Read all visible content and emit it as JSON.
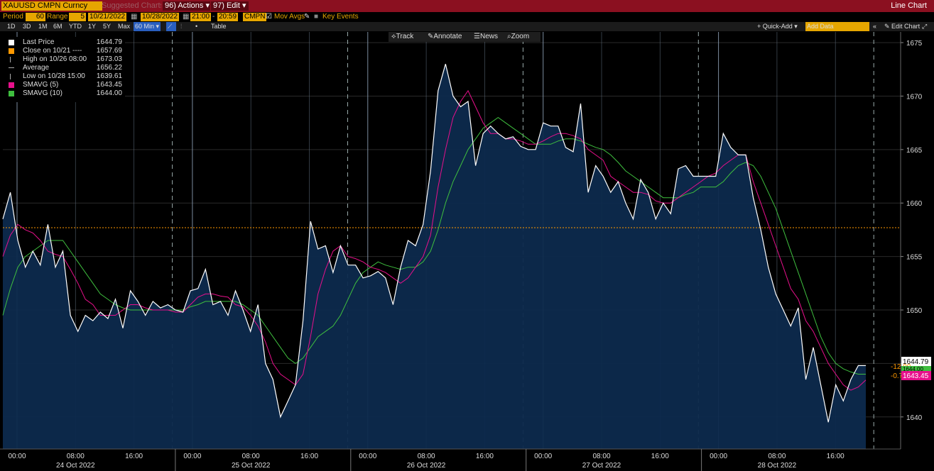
{
  "header": {
    "ticker": "XAUUSD CMPN Curncy",
    "suggested": "Suggested Charts",
    "actions": "96) Actions ▾",
    "edit": "97) Edit ▾",
    "title": "Line Chart"
  },
  "params": {
    "period_label": "Period",
    "period_value": "60",
    "range_label": "Range",
    "range_value": "5",
    "start_date": "10/21/2022",
    "end_date": "10/28/2022",
    "start_time": "21:00",
    "end_time": "20:59",
    "source": "CMPN",
    "mov_avgs": "Mov Avgs",
    "key_events": "Key Events"
  },
  "toolbar": {
    "ranges": [
      "1D",
      "3D",
      "1M",
      "6M",
      "YTD",
      "1Y",
      "5Y",
      "Max"
    ],
    "interval": "60 Min ▾",
    "table": "Table",
    "quick_add": "+ Quick-Add ▾",
    "add_data_placeholder": "Add Data",
    "edit_chart": "Edit Chart"
  },
  "tools": {
    "track": "Track",
    "annotate": "Annotate",
    "news": "News",
    "zoom": "Zoom"
  },
  "legend": [
    {
      "name": "Last Price",
      "value": "1644.79",
      "color": "#ffffff"
    },
    {
      "name": "Close on 10/21 ----",
      "value": "1657.69",
      "color": "#ff9900"
    },
    {
      "name": "High on 10/26 08:00",
      "value": "1673.03",
      "color": ""
    },
    {
      "name": "Average",
      "value": "1656.22",
      "color": ""
    },
    {
      "name": "Low on 10/28 15:00",
      "value": "1639.61",
      "color": ""
    },
    {
      "name": "SMAVG (5)",
      "value": "1643.45",
      "color": "#e8108c"
    },
    {
      "name": "SMAVG (10)",
      "value": "1644.00",
      "color": "#3fbf3f"
    }
  ],
  "right_tags": {
    "last": "1644.79",
    "change": "-12.90",
    "change_pct": "-0.78%",
    "smavg5": "1643.45",
    "smavg10": "1644.00"
  },
  "colors": {
    "price": "#ffffff",
    "fill": "#0d2a4d",
    "smavg5": "#e8108c",
    "smavg10": "#3fbf3f",
    "close_ref": "#ff9900",
    "accent": "#e6a600"
  },
  "chart_data": {
    "type": "area",
    "ylim": [
      1637,
      1676
    ],
    "yticks": [
      1640,
      1645,
      1650,
      1655,
      1660,
      1665,
      1670,
      1675
    ],
    "xticks": [
      "00:00",
      "08:00",
      "16:00",
      "00:00",
      "08:00",
      "16:00",
      "00:00",
      "08:00",
      "16:00",
      "00:00",
      "08:00",
      "16:00",
      "00:00",
      "08:00",
      "16:00"
    ],
    "day_labels": [
      "24 Oct 2022",
      "25 Oct 2022",
      "26 Oct 2022",
      "27 Oct 2022",
      "28 Oct 2022"
    ],
    "close_reference": 1657.69,
    "series": [
      {
        "name": "Last Price",
        "values": [
          1658.5,
          1661.0,
          1656.5,
          1654.0,
          1655.5,
          1654.2,
          1658.0,
          1654.0,
          1655.5,
          1649.5,
          1648.0,
          1649.5,
          1649.0,
          1649.8,
          1649.2,
          1651.0,
          1648.3,
          1651.8,
          1650.8,
          1649.5,
          1650.8,
          1650.2,
          1650.5,
          1650.0,
          1649.8,
          1651.8,
          1652.0,
          1653.8,
          1650.5,
          1650.8,
          1649.5,
          1651.8,
          1650.0,
          1648.0,
          1650.5,
          1645.0,
          1643.5,
          1640.0,
          1641.5,
          1643.0,
          1649.0,
          1658.3,
          1655.7,
          1656.0,
          1653.5,
          1656.0,
          1654.2,
          1654.2,
          1653.0,
          1653.2,
          1653.6,
          1653.0,
          1650.5,
          1654.0,
          1656.5,
          1656.0,
          1658.0,
          1663.0,
          1670.5,
          1673.0,
          1670.0,
          1669.0,
          1669.5,
          1663.5,
          1666.5,
          1667.2,
          1666.5,
          1666.0,
          1666.2,
          1665.3,
          1665.0,
          1665.0,
          1667.5,
          1667.2,
          1667.2,
          1665.2,
          1664.8,
          1669.3,
          1661.0,
          1663.5,
          1662.5,
          1661.0,
          1662.0,
          1660.0,
          1658.5,
          1662.2,
          1661.0,
          1658.5,
          1660.0,
          1659.0,
          1663.2,
          1663.5,
          1662.5,
          1662.5,
          1662.5,
          1662.5,
          1666.5,
          1665.2,
          1664.5,
          1664.5,
          1660.5,
          1657.5,
          1654.0,
          1651.5,
          1650.0,
          1648.5,
          1650.2,
          1643.5,
          1646.5,
          1643.0,
          1639.5,
          1643.0,
          1641.5,
          1643.5,
          1644.8,
          1644.8
        ]
      },
      {
        "name": "SMAVG (5)",
        "values": [
          1655.0,
          1657.0,
          1658.0,
          1657.5,
          1657.2,
          1656.5,
          1655.5,
          1655.2,
          1655.0,
          1653.8,
          1652.5,
          1651.0,
          1650.5,
          1649.5,
          1649.5,
          1649.5,
          1650.0,
          1650.5,
          1650.5,
          1650.2,
          1650.0,
          1650.0,
          1650.0,
          1649.8,
          1649.8,
          1650.5,
          1651.2,
          1651.5,
          1651.5,
          1651.3,
          1651.2,
          1650.5,
          1650.3,
          1649.5,
          1648.5,
          1647.0,
          1645.0,
          1644.0,
          1643.5,
          1643.0,
          1644.0,
          1647.5,
          1651.5,
          1653.8,
          1655.5,
          1656.0,
          1655.0,
          1654.8,
          1654.5,
          1654.0,
          1653.8,
          1653.5,
          1653.0,
          1652.5,
          1653.0,
          1654.0,
          1655.0,
          1657.0,
          1661.5,
          1665.0,
          1668.0,
          1669.5,
          1670.5,
          1669.0,
          1667.5,
          1666.5,
          1666.5,
          1666.0,
          1666.0,
          1665.8,
          1665.5,
          1665.5,
          1665.8,
          1666.2,
          1666.5,
          1666.5,
          1666.3,
          1666.0,
          1665.0,
          1664.5,
          1664.0,
          1662.5,
          1662.0,
          1661.5,
          1661.0,
          1661.0,
          1660.8,
          1660.2,
          1660.0,
          1660.0,
          1660.5,
          1661.0,
          1661.5,
          1662.0,
          1662.5,
          1662.8,
          1663.5,
          1664.0,
          1664.5,
          1664.5,
          1662.0,
          1660.0,
          1658.0,
          1656.0,
          1654.0,
          1652.0,
          1651.0,
          1649.0,
          1648.0,
          1646.5,
          1645.0,
          1644.0,
          1643.0,
          1642.5,
          1642.8,
          1643.45
        ]
      },
      {
        "name": "SMAVG (10)",
        "values": [
          1649.5,
          1652.0,
          1654.0,
          1655.0,
          1655.5,
          1656.0,
          1656.5,
          1656.5,
          1656.5,
          1655.5,
          1654.5,
          1653.5,
          1652.5,
          1651.5,
          1651.0,
          1650.5,
          1650.2,
          1650.0,
          1650.0,
          1650.0,
          1650.0,
          1650.0,
          1650.0,
          1650.0,
          1650.0,
          1650.3,
          1650.5,
          1650.8,
          1650.8,
          1650.8,
          1650.8,
          1650.8,
          1650.5,
          1650.0,
          1649.5,
          1648.5,
          1647.5,
          1646.5,
          1645.5,
          1645.0,
          1645.5,
          1646.5,
          1647.5,
          1648.0,
          1648.5,
          1649.5,
          1651.0,
          1652.5,
          1653.5,
          1654.0,
          1654.5,
          1654.2,
          1654.0,
          1653.8,
          1654.0,
          1654.0,
          1654.5,
          1655.5,
          1657.5,
          1660.0,
          1662.0,
          1663.5,
          1665.0,
          1666.0,
          1667.0,
          1667.5,
          1668.0,
          1667.5,
          1667.0,
          1666.5,
          1666.0,
          1665.5,
          1665.5,
          1665.5,
          1665.8,
          1666.0,
          1666.0,
          1665.8,
          1665.5,
          1665.2,
          1665.0,
          1664.5,
          1663.8,
          1663.0,
          1662.5,
          1662.0,
          1661.5,
          1661.0,
          1660.5,
          1660.5,
          1660.5,
          1660.8,
          1661.0,
          1661.5,
          1661.5,
          1661.5,
          1662.0,
          1662.8,
          1663.5,
          1663.8,
          1663.5,
          1662.5,
          1661.0,
          1659.5,
          1657.5,
          1655.5,
          1653.5,
          1651.5,
          1649.5,
          1647.5,
          1646.0,
          1645.0,
          1644.5,
          1644.2,
          1644.0,
          1644.0
        ]
      }
    ]
  }
}
